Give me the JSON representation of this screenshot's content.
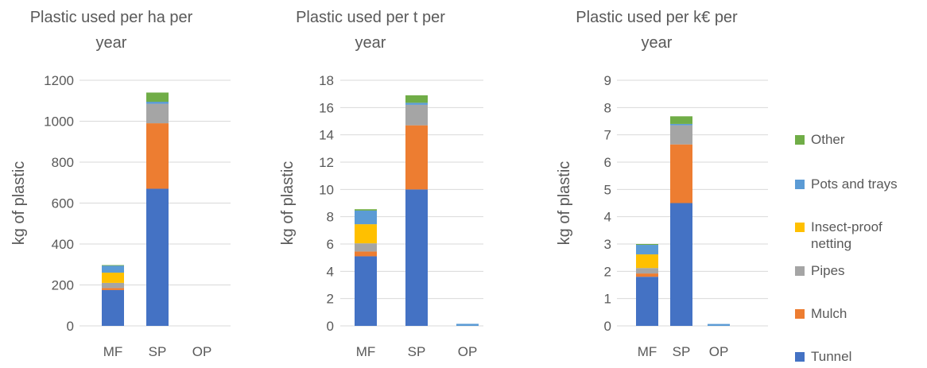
{
  "colors": {
    "Tunnel": "#4472c4",
    "Mulch": "#ed7d31",
    "Pipes": "#a5a5a5",
    "Insect-proof netting": "#ffc000",
    "Pots and trays": "#5b9bd5",
    "Other": "#70ad47",
    "axis": "#595959",
    "grid": "#d9d9d9"
  },
  "legend": [
    {
      "key": "Other",
      "label": "Other"
    },
    {
      "key": "Pots and trays",
      "label": "Pots and trays"
    },
    {
      "key": "Insect-proof netting",
      "label": "Insect-proof netting"
    },
    {
      "key": "Pipes",
      "label": "Pipes"
    },
    {
      "key": "Mulch",
      "label": "Mulch"
    },
    {
      "key": "Tunnel",
      "label": "Tunnel"
    }
  ],
  "chart_data": [
    {
      "type": "bar",
      "stacked": true,
      "title_lines": [
        "Plastic used per ha per",
        "year"
      ],
      "xlabel": "",
      "ylabel": "kg of plastic",
      "ylim": [
        0,
        1200
      ],
      "yticks": [
        "0",
        "200",
        "400",
        "600",
        "800",
        "1000",
        "1200"
      ],
      "categories": [
        "MF",
        "SP",
        "OP"
      ],
      "gridlines": true,
      "series": [
        {
          "name": "Tunnel",
          "values": [
            175,
            670,
            0
          ]
        },
        {
          "name": "Mulch",
          "values": [
            10,
            320,
            0
          ]
        },
        {
          "name": "Pipes",
          "values": [
            25,
            95,
            0
          ]
        },
        {
          "name": "Insect-proof netting",
          "values": [
            50,
            0,
            0
          ]
        },
        {
          "name": "Pots and trays",
          "values": [
            35,
            10,
            0
          ]
        },
        {
          "name": "Other",
          "values": [
            2,
            45,
            0
          ]
        }
      ]
    },
    {
      "type": "bar",
      "stacked": true,
      "title_lines": [
        "Plastic used per t per",
        "year"
      ],
      "xlabel": "",
      "ylabel": "kg of plastic",
      "ylim": [
        0,
        18
      ],
      "yticks": [
        "0",
        "2",
        "4",
        "6",
        "8",
        "10",
        "12",
        "14",
        "16",
        "18"
      ],
      "categories": [
        "MF",
        "SP",
        "OP"
      ],
      "gridlines": true,
      "series": [
        {
          "name": "Tunnel",
          "values": [
            5.1,
            10.0,
            0
          ]
        },
        {
          "name": "Mulch",
          "values": [
            0.35,
            4.7,
            0
          ]
        },
        {
          "name": "Pipes",
          "values": [
            0.6,
            1.5,
            0
          ]
        },
        {
          "name": "Insect-proof netting",
          "values": [
            1.4,
            0,
            0
          ]
        },
        {
          "name": "Pots and trays",
          "values": [
            1.0,
            0.15,
            0.15
          ]
        },
        {
          "name": "Other",
          "values": [
            0.1,
            0.55,
            0
          ]
        }
      ]
    },
    {
      "type": "bar",
      "stacked": true,
      "title_lines": [
        "Plastic used per k€ per",
        "year"
      ],
      "xlabel": "",
      "ylabel": "kg of plastic",
      "ylim": [
        0,
        9
      ],
      "yticks": [
        "0",
        "1",
        "2",
        "3",
        "4",
        "5",
        "6",
        "7",
        "8",
        "9"
      ],
      "categories": [
        "MF",
        "SP",
        "OP"
      ],
      "gridlines": true,
      "series": [
        {
          "name": "Tunnel",
          "values": [
            1.8,
            4.5,
            0
          ]
        },
        {
          "name": "Mulch",
          "values": [
            0.12,
            2.15,
            0
          ]
        },
        {
          "name": "Pipes",
          "values": [
            0.2,
            0.7,
            0
          ]
        },
        {
          "name": "Insect-proof netting",
          "values": [
            0.5,
            0,
            0
          ]
        },
        {
          "name": "Pots and trays",
          "values": [
            0.35,
            0.05,
            0.07
          ]
        },
        {
          "name": "Other",
          "values": [
            0.03,
            0.28,
            0
          ]
        }
      ]
    }
  ]
}
